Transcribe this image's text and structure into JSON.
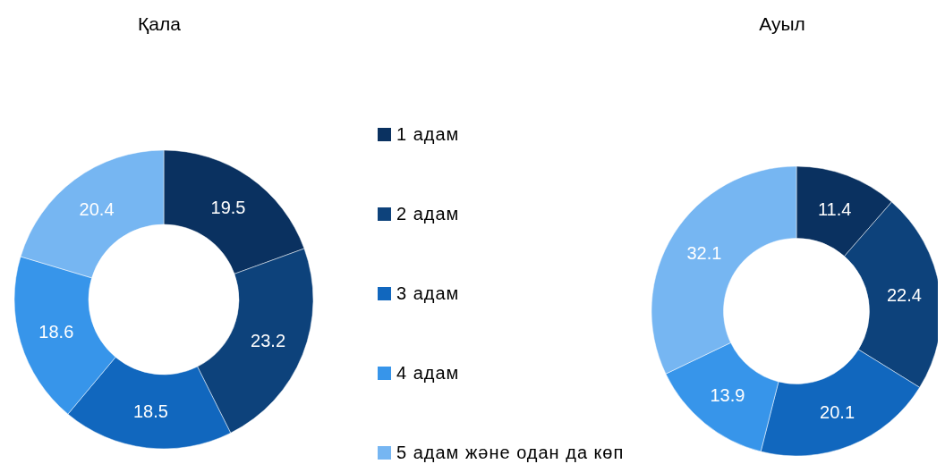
{
  "chart_data": {
    "type": "donut",
    "categories": [
      "1 адам",
      "2 адам",
      "3 адам",
      "4 адам",
      "5 адам және одан да көп"
    ],
    "colors": [
      "#0a3160",
      "#0d427b",
      "#1167be",
      "#3795ea",
      "#76b6f2"
    ],
    "series": [
      {
        "name": "Қала",
        "values": [
          19.5,
          23.2,
          18.5,
          18.6,
          20.4
        ]
      },
      {
        "name": "Ауыл",
        "values": [
          11.4,
          22.4,
          20.1,
          13.9,
          32.1
        ]
      }
    ],
    "data_labels": true,
    "legend": "right"
  }
}
